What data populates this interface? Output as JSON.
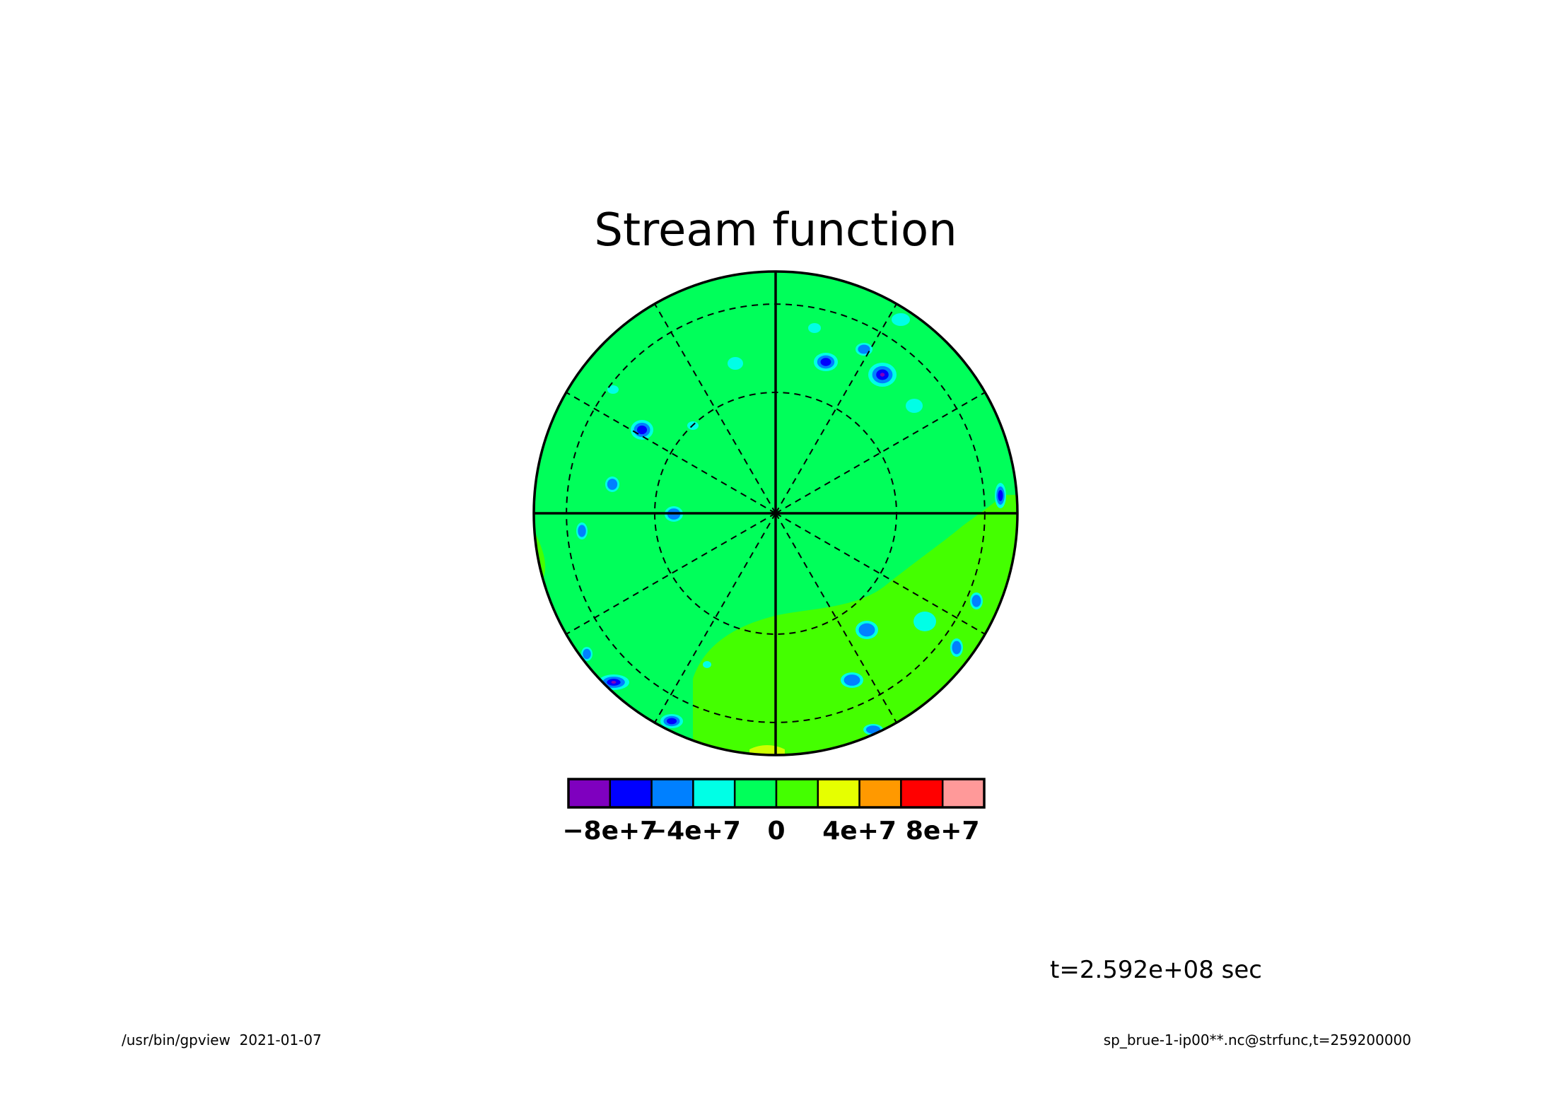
{
  "chart_data": {
    "type": "heatmap",
    "title": "Stream function",
    "projection": "polar stereographic (orthographic disk)",
    "grid": true,
    "colorbar": {
      "levels": [
        -100000000.0,
        -80000000.0,
        -60000000.0,
        -40000000.0,
        -20000000.0,
        0,
        20000000.0,
        40000000.0,
        60000000.0,
        80000000.0,
        100000000.0
      ],
      "tick_labels": [
        "−8e+7",
        "−4e+7",
        "0",
        "4e+7",
        "8e+7"
      ],
      "tick_values": [
        -80000000.0,
        -40000000.0,
        0,
        40000000.0,
        80000000.0
      ],
      "colors": [
        "#7f00bf",
        "#0000ff",
        "#0080ff",
        "#00ffe6",
        "#00ff5a",
        "#44ff00",
        "#e6ff00",
        "#ff9900",
        "#ff0000",
        "#ff9999"
      ]
    },
    "background_value_range": [
      0,
      20000000.0
    ],
    "features": [
      {
        "kind": "region",
        "value_range": [
          20000000.0,
          40000000.0
        ],
        "location": "southern / lower-right portion of disk"
      },
      {
        "kind": "vortex",
        "value_min": -80000000.0,
        "location": "upper-right"
      },
      {
        "kind": "vortex",
        "value_min": -60000000.0,
        "location": "upper-left"
      },
      {
        "kind": "vortex",
        "value_min": -100000000.0,
        "location": "lower-left rim"
      }
    ]
  },
  "annotations": {
    "time": "t=2.592e+08 sec",
    "footer_left": "/usr/bin/gpview  2021-01-07",
    "footer_right": "sp_brue-1-ip00**.nc@strfunc,t=259200000"
  },
  "colors": {
    "background": "#ffffff",
    "foreground": "#000000"
  }
}
